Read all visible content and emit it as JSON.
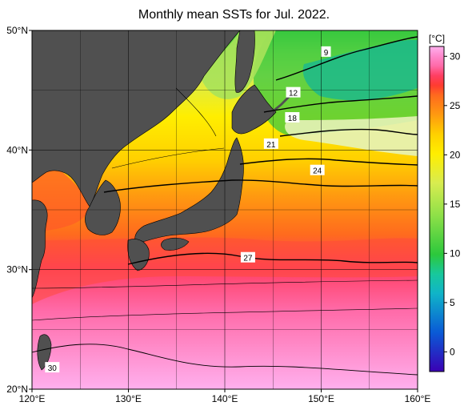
{
  "chart_data": {
    "type": "heatmap",
    "title": "Monthly mean SSTs for Jul. 2022.",
    "xlim": [
      120,
      160
    ],
    "ylim": [
      20,
      50
    ],
    "x_ticks": [
      {
        "value": 120,
        "label": "120°E"
      },
      {
        "value": 130,
        "label": "130°E"
      },
      {
        "value": 140,
        "label": "140°E"
      },
      {
        "value": 150,
        "label": "150°E"
      },
      {
        "value": 160,
        "label": "160°E"
      }
    ],
    "y_ticks": [
      {
        "value": 20,
        "label": "20°N"
      },
      {
        "value": 30,
        "label": "30°N"
      },
      {
        "value": 40,
        "label": "40°N"
      },
      {
        "value": 50,
        "label": "50°N"
      }
    ],
    "grid": true,
    "colorbar": {
      "unit": "[°C]",
      "range": [
        -2,
        31
      ],
      "ticks": [
        0,
        5,
        10,
        15,
        20,
        25,
        30
      ],
      "colors": {
        "c-2": "#3a00b4",
        "c2": "#0a5ad6",
        "c6": "#10b4c8",
        "c8": "#18c89c",
        "c10": "#2cc83c",
        "c14": "#8ee048",
        "c17": "#d8ec50",
        "c20": "#ffee00",
        "c22": "#ffd000",
        "c24": "#ff9a10",
        "c26": "#ff6a1e",
        "c27": "#ff3c30",
        "c28": "#ff3e62",
        "c29": "#ff6aa8",
        "c30": "#ff88cc",
        "c31": "#ffb0ee"
      }
    },
    "contour_labels": [
      {
        "value": 9,
        "lon": 150.5,
        "lat": 48.2
      },
      {
        "value": 12,
        "lon": 147.1,
        "lat": 44.8
      },
      {
        "value": 18,
        "lon": 147.0,
        "lat": 42.7
      },
      {
        "value": 21,
        "lon": 144.8,
        "lat": 40.5
      },
      {
        "value": 24,
        "lon": 149.6,
        "lat": 38.3
      },
      {
        "value": 27,
        "lon": 142.4,
        "lat": 31.0
      },
      {
        "value": 30,
        "lon": 122.1,
        "lat": 21.8
      }
    ],
    "colors": {
      "land": "#505050",
      "axis": "#000000"
    }
  }
}
